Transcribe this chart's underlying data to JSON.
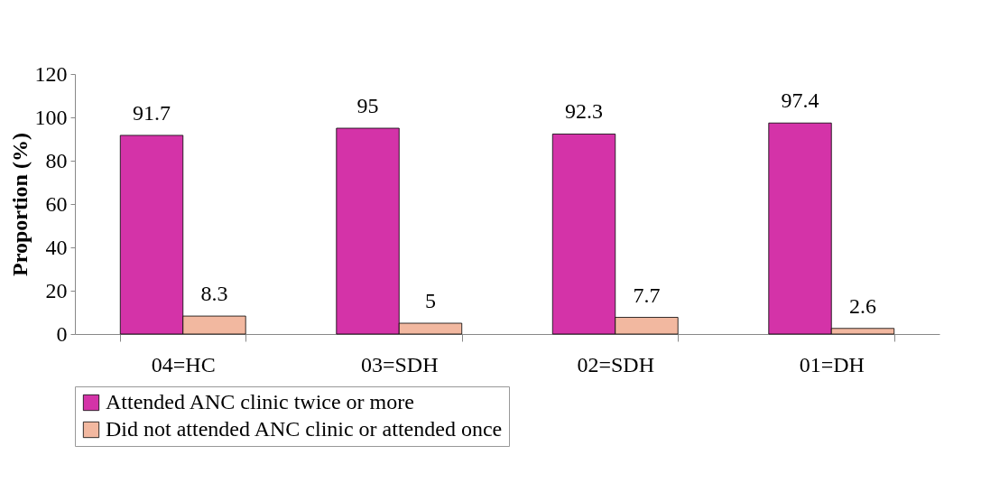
{
  "chart_data": {
    "type": "bar",
    "ylabel": "Proportion (%)",
    "categories": [
      "04=HC",
      "03=SDH",
      "02=SDH",
      "01=DH"
    ],
    "series": [
      {
        "name": "Attended ANC clinic twice or more",
        "color": "#d433a8",
        "values": [
          91.7,
          95,
          92.3,
          97.4
        ]
      },
      {
        "name": "Did not attended ANC clinic or attended once",
        "color": "#f2b8a0",
        "values": [
          8.3,
          5,
          7.7,
          2.6
        ]
      }
    ],
    "ylim": [
      0,
      120
    ],
    "yticks": [
      0,
      20,
      40,
      60,
      80,
      100,
      120
    ],
    "grid": false,
    "legend": "bottom",
    "data_labels": true
  }
}
